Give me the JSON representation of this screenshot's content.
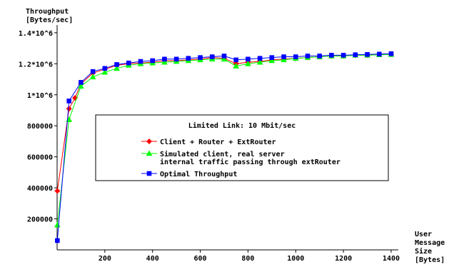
{
  "chart_data": {
    "type": "line",
    "ylabel_lines": [
      "Throughput",
      "[Bytes/sec]"
    ],
    "xlabel_lines": [
      "User",
      "Message",
      "Size",
      "[Bytes]"
    ],
    "xlim": [
      0,
      1430
    ],
    "ylim": [
      0,
      1450000
    ],
    "x_ticks": [
      200,
      400,
      600,
      800,
      1000,
      1200,
      1400
    ],
    "x_tick_labels": [
      "200",
      "400",
      "600",
      "800",
      "1000",
      "1200",
      "1400"
    ],
    "y_ticks": [
      200000,
      400000,
      600000,
      800000,
      1000000,
      1200000,
      1400000
    ],
    "y_tick_labels": [
      "200000",
      "400000",
      "600000",
      "800000",
      "1*10^6",
      "1.2*10^6",
      "1.4*10^6"
    ],
    "legend_title": "Limited Link: 10 Mbit/sec",
    "legend_placement": "center",
    "grid": false,
    "series": [
      {
        "name": "Client + Router + ExtRouter",
        "color": "#ff0000",
        "marker": "diamond",
        "x": [
          1,
          50,
          75,
          100,
          150,
          200,
          250,
          300,
          350,
          400,
          450,
          500,
          550,
          600,
          650,
          700,
          750,
          800,
          850,
          900,
          950,
          1000,
          1050,
          1100,
          1150,
          1200,
          1250,
          1300,
          1350,
          1400
        ],
        "y": [
          380000,
          910000,
          980000,
          1070000,
          1140000,
          1165000,
          1190000,
          1200000,
          1205000,
          1210000,
          1220000,
          1220000,
          1225000,
          1230000,
          1240000,
          1235000,
          1200000,
          1210000,
          1215000,
          1225000,
          1230000,
          1235000,
          1240000,
          1245000,
          1250000,
          1250000,
          1255000,
          1255000,
          1260000,
          1260000
        ]
      },
      {
        "name": "Simulated client, real server",
        "name_line2": "internal traffic passing through extRouter",
        "color": "#00ff00",
        "marker": "triangle",
        "x": [
          1,
          50,
          100,
          150,
          200,
          250,
          300,
          350,
          400,
          450,
          500,
          550,
          600,
          650,
          700,
          750,
          800,
          850,
          900,
          950,
          1000,
          1050,
          1100,
          1150,
          1200,
          1250,
          1300,
          1350,
          1400
        ],
        "y": [
          160000,
          840000,
          1055000,
          1115000,
          1145000,
          1170000,
          1190000,
          1200000,
          1205000,
          1210000,
          1215000,
          1220000,
          1225000,
          1230000,
          1230000,
          1185000,
          1200000,
          1210000,
          1220000,
          1225000,
          1235000,
          1240000,
          1245000,
          1250000,
          1250000,
          1255000,
          1255000,
          1258000,
          1260000
        ]
      },
      {
        "name": "Optimal Throughput",
        "color": "#0000ff",
        "marker": "square",
        "x": [
          1,
          50,
          100,
          150,
          200,
          250,
          300,
          350,
          400,
          450,
          500,
          550,
          600,
          650,
          700,
          750,
          800,
          850,
          900,
          950,
          1000,
          1050,
          1100,
          1150,
          1200,
          1250,
          1300,
          1350,
          1400
        ],
        "y": [
          60000,
          960000,
          1080000,
          1150000,
          1170000,
          1195000,
          1205000,
          1215000,
          1220000,
          1230000,
          1230000,
          1235000,
          1240000,
          1245000,
          1250000,
          1225000,
          1230000,
          1235000,
          1240000,
          1245000,
          1245000,
          1250000,
          1250000,
          1255000,
          1255000,
          1258000,
          1260000,
          1262000,
          1265000
        ]
      }
    ]
  }
}
